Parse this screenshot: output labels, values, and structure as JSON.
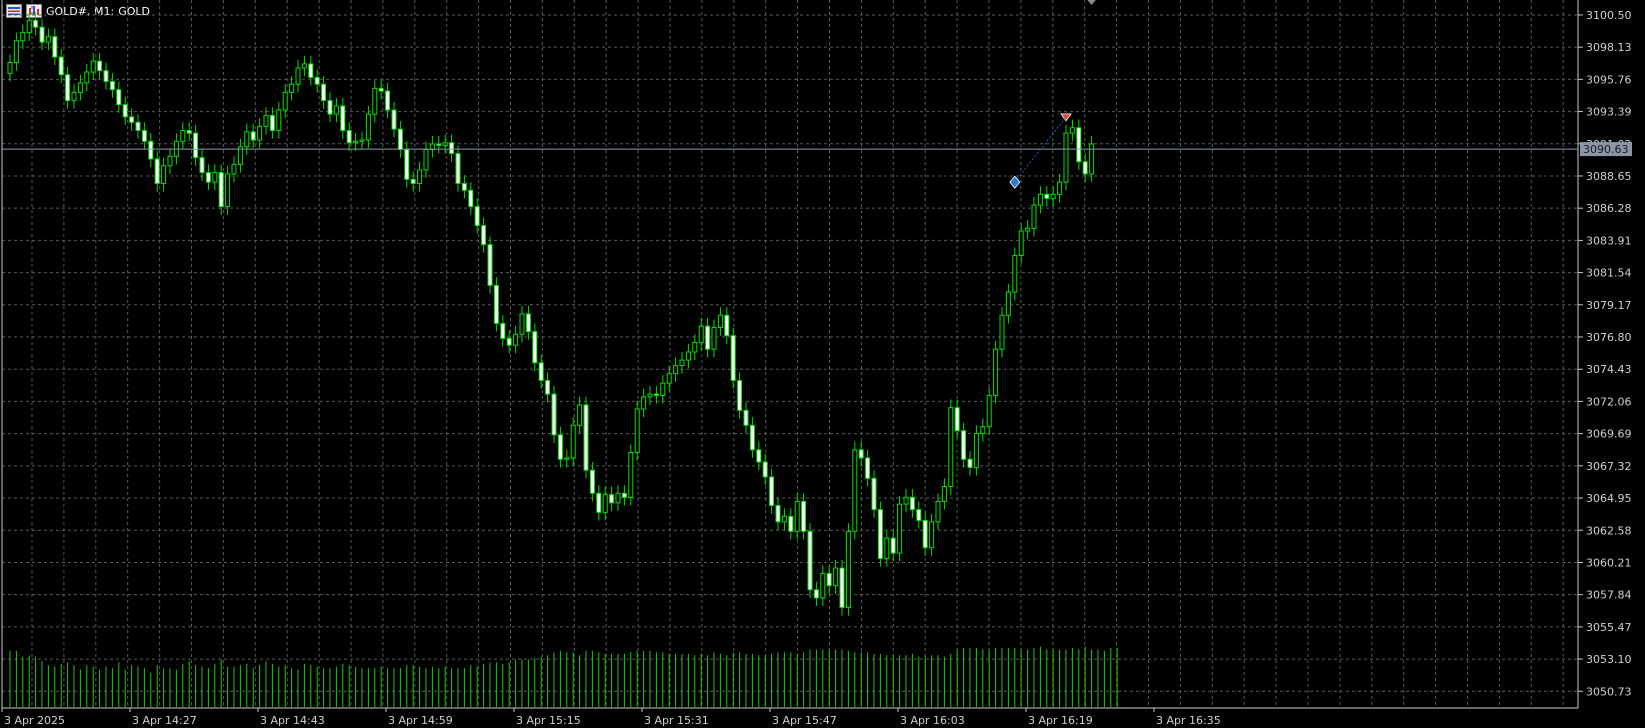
{
  "header": {
    "symbol": "GOLD#, M1:",
    "description": "GOLD",
    "icons": [
      "calendar-icon",
      "chart-icon"
    ]
  },
  "colors": {
    "background": "#000000",
    "grid": "#5a5a5a",
    "candle_up": "#00e000",
    "candle_body_up": "#000000",
    "candle_down": "#ffffff",
    "volume": "#18c818",
    "bid_line": "#8a9ab0",
    "current_price_bg": "#8a96a8"
  },
  "current_price": "3090.63",
  "chart_data": {
    "type": "candlestick",
    "title": "",
    "ylabel": "",
    "xlabel": "",
    "ylim": [
      3049.5,
      3101.6
    ],
    "y_ticks": [
      "3100.50",
      "3098.13",
      "3095.76",
      "3093.39",
      "3091.02",
      "3088.65",
      "3086.28",
      "3083.91",
      "3081.54",
      "3079.17",
      "3076.80",
      "3074.43",
      "3072.06",
      "3069.69",
      "3067.32",
      "3064.95",
      "3062.58",
      "3060.21",
      "3057.84",
      "3055.47",
      "3053.10",
      "3050.73"
    ],
    "x_ticks": [
      "3 Apr 2025",
      "3 Apr 14:27",
      "3 Apr 14:43",
      "3 Apr 14:59",
      "3 Apr 15:15",
      "3 Apr 15:31",
      "3 Apr 15:47",
      "3 Apr 16:03",
      "3 Apr 16:19",
      "3 Apr 16:35"
    ],
    "grid": true,
    "markers": [
      {
        "type": "buy",
        "color": "#2e7bd6",
        "value": 3088.2
      },
      {
        "type": "sell",
        "color": "#e04a2a",
        "value": 3093.0
      }
    ],
    "candles_close": [
      3097.0,
      3098.6,
      3099.2,
      3100.1,
      3099.6,
      3098.5,
      3098.9,
      3097.4,
      3096.1,
      3094.2,
      3094.8,
      3095.5,
      3096.3,
      3097.1,
      3096.4,
      3095.6,
      3095.0,
      3093.9,
      3093.0,
      3092.6,
      3092.0,
      3091.2,
      3089.9,
      3088.1,
      3089.4,
      3090.1,
      3091.2,
      3092.0,
      3091.8,
      3090.0,
      3088.9,
      3088.2,
      3088.9,
      3086.4,
      3088.8,
      3089.5,
      3090.8,
      3091.9,
      3091.3,
      3092.3,
      3093.1,
      3092.0,
      3093.5,
      3094.8,
      3095.4,
      3096.6,
      3096.9,
      3095.9,
      3095.4,
      3094.2,
      3093.2,
      3093.8,
      3092.0,
      3091.1,
      3091.2,
      3091.3,
      3093.2,
      3095.1,
      3094.9,
      3093.5,
      3092.1,
      3090.6,
      3088.4,
      3088.1,
      3089.1,
      3090.6,
      3091.0,
      3090.9,
      3091.1,
      3090.3,
      3088.1,
      3087.6,
      3086.4,
      3085.0,
      3083.6,
      3080.6,
      3077.8,
      3076.7,
      3076.2,
      3077.0,
      3078.5,
      3077.2,
      3074.9,
      3073.6,
      3072.6,
      3069.6,
      3067.8,
      3067.9,
      3070.3,
      3071.8,
      3067.0,
      3065.3,
      3063.9,
      3065.2,
      3064.6,
      3065.3,
      3065.0,
      3068.3,
      3071.5,
      3072.4,
      3072.6,
      3072.5,
      3073.4,
      3074.1,
      3074.7,
      3075.1,
      3075.7,
      3076.4,
      3077.6,
      3075.9,
      3077.5,
      3078.4,
      3076.9,
      3073.6,
      3071.4,
      3070.3,
      3068.5,
      3067.6,
      3066.5,
      3064.4,
      3063.2,
      3063.6,
      3062.5,
      3064.7,
      3062.5,
      3058.2,
      3057.6,
      3059.4,
      3058.5,
      3059.8,
      3056.9,
      3062.5,
      3068.5,
      3067.9,
      3066.4,
      3064.1,
      3060.5,
      3062.0,
      3060.9,
      3064.5,
      3065.0,
      3064.1,
      3063.3,
      3061.3,
      3063.2,
      3064.7,
      3065.8,
      3071.6,
      3069.9,
      3067.8,
      3067.2,
      3069.7,
      3070.2,
      3072.5,
      3075.9,
      3078.4,
      3080.1,
      3082.8,
      3084.6,
      3084.8,
      3086.5,
      3087.3,
      3087.0,
      3087.3,
      3088.2,
      3091.8,
      3092.2,
      3089.7,
      3088.8,
      3091.0
    ],
    "volume_levels": [
      0.78,
      0.78,
      0.7,
      0.72,
      0.7,
      0.64,
      0.58,
      0.56,
      0.6,
      0.62,
      0.58,
      0.52,
      0.58,
      0.56,
      0.52,
      0.56,
      0.54,
      0.62,
      0.52,
      0.58,
      0.56,
      0.54,
      0.48,
      0.58,
      0.54,
      0.54,
      0.52,
      0.6,
      0.64,
      0.58,
      0.56,
      0.54,
      0.6,
      0.66,
      0.56,
      0.56,
      0.58,
      0.6,
      0.54,
      0.58,
      0.64,
      0.6,
      0.56,
      0.58,
      0.54,
      0.52,
      0.6,
      0.58,
      0.56,
      0.54,
      0.54,
      0.56,
      0.6,
      0.58,
      0.56,
      0.54,
      0.54,
      0.54,
      0.56,
      0.54,
      0.54,
      0.54,
      0.58,
      0.58,
      0.56,
      0.54,
      0.56,
      0.54,
      0.56,
      0.54,
      0.54,
      0.54,
      0.58,
      0.56,
      0.6,
      0.62,
      0.62,
      0.6,
      0.62,
      0.66,
      0.66,
      0.66,
      0.68,
      0.7,
      0.72,
      0.76,
      0.78,
      0.76,
      0.76,
      0.72,
      0.78,
      0.78,
      0.76,
      0.74,
      0.74,
      0.74,
      0.74,
      0.76,
      0.78,
      0.78,
      0.78,
      0.76,
      0.76,
      0.74,
      0.74,
      0.74,
      0.74,
      0.72,
      0.74,
      0.72,
      0.76,
      0.74,
      0.72,
      0.76,
      0.76,
      0.74,
      0.74,
      0.72,
      0.72,
      0.74,
      0.76,
      0.76,
      0.76,
      0.74,
      0.76,
      0.8,
      0.8,
      0.8,
      0.8,
      0.8,
      0.8,
      0.78,
      0.76,
      0.76,
      0.76,
      0.74,
      0.74,
      0.72,
      0.72,
      0.72,
      0.72,
      0.74,
      0.7,
      0.7,
      0.72,
      0.72,
      0.7,
      0.74,
      0.8,
      0.82,
      0.82,
      0.82,
      0.8,
      0.8,
      0.82,
      0.82,
      0.82,
      0.82,
      0.8,
      0.8,
      0.82,
      0.84,
      0.8,
      0.8,
      0.8,
      0.8,
      0.82,
      0.8,
      0.84,
      0.8,
      0.8,
      0.78,
      0.82,
      0.82
    ]
  }
}
